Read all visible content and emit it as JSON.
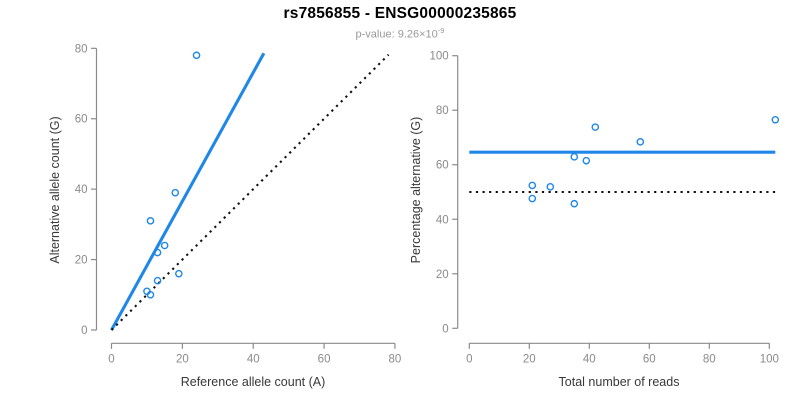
{
  "header": {
    "title": "rs7856855 - ENSG00000235865",
    "subtitle_main": "p-value: 9.26×10",
    "subtitle_sup": "-9"
  },
  "colors": {
    "blue": "#1f87e8",
    "black": "#111111",
    "axis": "#8a8a8a",
    "tick_label": "#8a8a8a",
    "axis_title": "#383838",
    "title": "#000000",
    "subtitle": "#999999"
  },
  "chart_data": [
    {
      "type": "scatter",
      "title": "",
      "xlabel": "Reference allele count (A)",
      "ylabel": "Alternative allele count (G)",
      "xlim": [
        0,
        80
      ],
      "ylim": [
        0,
        80
      ],
      "xticks": [
        0,
        20,
        40,
        60,
        80
      ],
      "yticks": [
        0,
        20,
        40,
        60,
        80
      ],
      "grid": false,
      "legend": null,
      "points": [
        [
          24,
          78
        ],
        [
          18,
          39
        ],
        [
          11,
          31
        ],
        [
          15,
          24
        ],
        [
          13,
          22
        ],
        [
          19,
          16
        ],
        [
          13,
          14
        ],
        [
          10,
          11
        ],
        [
          11,
          10
        ]
      ],
      "lines": [
        {
          "name": "fit-line",
          "style": "solid",
          "color_key": "blue",
          "x": [
            0,
            43
          ],
          "y": [
            0,
            78.6
          ]
        },
        {
          "name": "identity-line",
          "style": "dotted",
          "color_key": "black",
          "x": [
            0,
            78.2
          ],
          "y": [
            0,
            78.2
          ]
        }
      ]
    },
    {
      "type": "scatter",
      "title": "",
      "xlabel": "Total number of reads",
      "ylabel": "Percentage alternative (G)",
      "xlim": [
        0,
        100
      ],
      "ylim": [
        0,
        100
      ],
      "xticks": [
        0,
        20,
        40,
        60,
        80,
        100
      ],
      "yticks": [
        0,
        20,
        40,
        60,
        80,
        100
      ],
      "grid": false,
      "legend": null,
      "points": [
        [
          102,
          76.5
        ],
        [
          57,
          68.4
        ],
        [
          42,
          73.8
        ],
        [
          39,
          61.5
        ],
        [
          35,
          62.9
        ],
        [
          35,
          45.7
        ],
        [
          27,
          51.9
        ],
        [
          21,
          52.4
        ],
        [
          21,
          47.6
        ]
      ],
      "lines": [
        {
          "name": "mean-percentage-line",
          "style": "solid",
          "color_key": "blue",
          "x": [
            0,
            102
          ],
          "y": [
            64.6,
            64.6
          ]
        },
        {
          "name": "expected-50-line",
          "style": "dotted",
          "color_key": "black",
          "x": [
            0,
            102
          ],
          "y": [
            50,
            50
          ]
        }
      ]
    }
  ]
}
